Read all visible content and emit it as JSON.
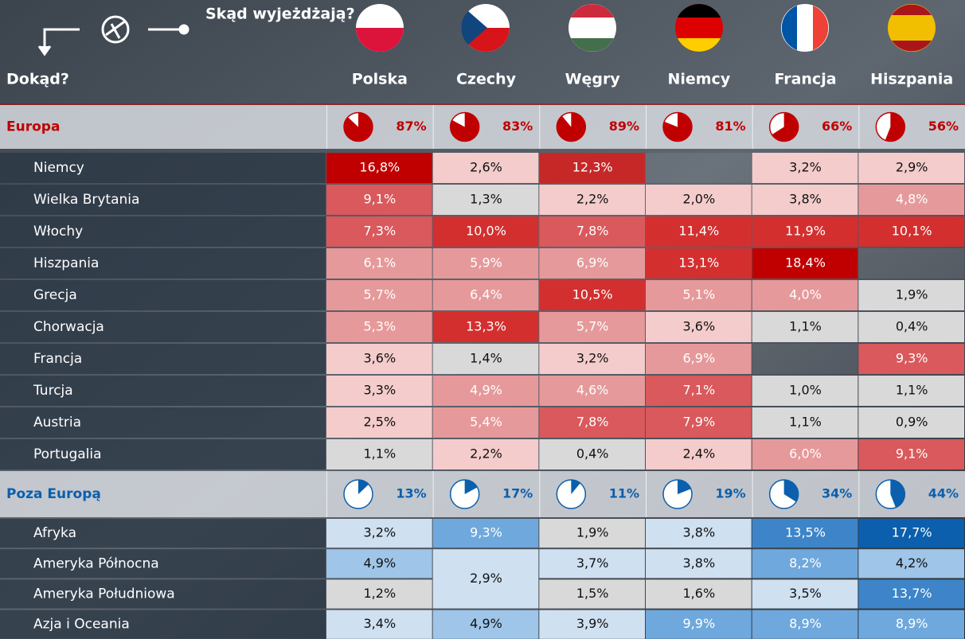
{
  "header": {
    "from_label": "Skąd wyjeżdżają?",
    "to_label": "Dokąd?",
    "countries": [
      "Polska",
      "Czechy",
      "Węgry",
      "Niemcy",
      "Francja",
      "Hiszpania"
    ]
  },
  "sections": [
    {
      "title": "Europa",
      "color": "#c00000",
      "shares": [
        {
          "value": 87,
          "label": "87%"
        },
        {
          "value": 83,
          "label": "83%"
        },
        {
          "value": 89,
          "label": "89%"
        },
        {
          "value": 81,
          "label": "81%"
        },
        {
          "value": 66,
          "label": "66%"
        },
        {
          "value": 56,
          "label": "56%"
        }
      ],
      "rows": [
        {
          "label": "Niemcy",
          "values": [
            "16,8%",
            "2,6%",
            "12,3%",
            null,
            "3,2%",
            "2,9%"
          ],
          "colors": [
            "#c00000",
            "#f4cccc",
            "#c62828",
            "rgba(255,255,255,0.08)",
            "#f4cccc",
            "#f4cccc"
          ]
        },
        {
          "label": "Wielka Brytania",
          "values": [
            "9,1%",
            "1,3%",
            "2,2%",
            "2,0%",
            "3,8%",
            "4,8%"
          ],
          "colors": [
            "#d9595c",
            "#d9d9d9",
            "#f4cccc",
            "#f4cccc",
            "#f4cccc",
            "#e6999a"
          ]
        },
        {
          "label": "Włochy",
          "values": [
            "7,3%",
            "10,0%",
            "7,8%",
            "11,4%",
            "11,9%",
            "10,1%"
          ],
          "colors": [
            "#d9595c",
            "#d42f2f",
            "#d9595c",
            "#d42f2f",
            "#d42f2f",
            "#d42f2f"
          ]
        },
        {
          "label": "Hiszpania",
          "values": [
            "6,1%",
            "5,9%",
            "6,9%",
            "13,1%",
            "18,4%",
            null
          ],
          "colors": [
            "#e6999a",
            "#e6999a",
            "#e6999a",
            "#d42f2f",
            "#c00000",
            "rgba(255,255,255,0.08)"
          ]
        },
        {
          "label": "Grecja",
          "values": [
            "5,7%",
            "6,4%",
            "10,5%",
            "5,1%",
            "4,0%",
            "1,9%"
          ],
          "colors": [
            "#e6999a",
            "#e6999a",
            "#d42f2f",
            "#e6999a",
            "#e6999a",
            "#d9d9d9"
          ]
        },
        {
          "label": "Chorwacja",
          "values": [
            "5,3%",
            "13,3%",
            "5,7%",
            "3,6%",
            "1,1%",
            "0,4%"
          ],
          "colors": [
            "#e6999a",
            "#d42f2f",
            "#e6999a",
            "#f4cccc",
            "#d9d9d9",
            "#d9d9d9"
          ]
        },
        {
          "label": "Francja",
          "values": [
            "3,6%",
            "1,4%",
            "3,2%",
            "6,9%",
            null,
            "9,3%"
          ],
          "colors": [
            "#f4cccc",
            "#d9d9d9",
            "#f4cccc",
            "#e6999a",
            "rgba(255,255,255,0.08)",
            "#d9595c"
          ]
        },
        {
          "label": "Turcja",
          "values": [
            "3,3%",
            "4,9%",
            "4,6%",
            "7,1%",
            "1,0%",
            "1,1%"
          ],
          "colors": [
            "#f4cccc",
            "#e6999a",
            "#e6999a",
            "#d9595c",
            "#d9d9d9",
            "#d9d9d9"
          ]
        },
        {
          "label": "Austria",
          "values": [
            "2,5%",
            "5,4%",
            "7,8%",
            "7,9%",
            "1,1%",
            "0,9%"
          ],
          "colors": [
            "#f4cccc",
            "#e6999a",
            "#d9595c",
            "#d9595c",
            "#d9d9d9",
            "#d9d9d9"
          ]
        },
        {
          "label": "Portugalia",
          "values": [
            "1,1%",
            "2,2%",
            "0,4%",
            "2,4%",
            "6,0%",
            "9,1%"
          ],
          "colors": [
            "#d9d9d9",
            "#f4cccc",
            "#d9d9d9",
            "#f4cccc",
            "#e6999a",
            "#d9595c"
          ]
        }
      ]
    },
    {
      "title": "Poza Europą",
      "color": "#0b5fad",
      "shares": [
        {
          "value": 13,
          "label": "13%"
        },
        {
          "value": 17,
          "label": "17%"
        },
        {
          "value": 11,
          "label": "11%"
        },
        {
          "value": 19,
          "label": "19%"
        },
        {
          "value": 34,
          "label": "34%"
        },
        {
          "value": 44,
          "label": "44%"
        }
      ],
      "rows": [
        {
          "label": "Afryka",
          "values": [
            "3,2%",
            "9,3%",
            "1,9%",
            "3,8%",
            "13,5%",
            "17,7%"
          ],
          "colors": [
            "#cfe0f1",
            "#6fa8dc",
            "#d9d9d9",
            "#cfe0f1",
            "#3d85c8",
            "#0b5fad"
          ]
        },
        {
          "label": "Ameryka Północna",
          "values": [
            "4,9%",
            "2,9%",
            "3,7%",
            "3,8%",
            "8,2%",
            "4,2%"
          ],
          "colors": [
            "#9fc5e8",
            "#cfe0f1",
            "#cfe0f1",
            "#cfe0f1",
            "#6fa8dc",
            "#9fc5e8"
          ]
        },
        {
          "label": "Ameryka Południowa",
          "values": [
            "1,2%",
            null,
            "1,5%",
            "1,6%",
            "3,5%",
            "13,7%"
          ],
          "colors": [
            "#d9d9d9",
            null,
            "#d9d9d9",
            "#d9d9d9",
            "#cfe0f1",
            "#3d85c8"
          ]
        },
        {
          "label": "Azja i Oceania",
          "values": [
            "3,4%",
            "4,9%",
            "3,9%",
            "9,9%",
            "8,9%",
            "8,9%"
          ],
          "colors": [
            "#cfe0f1",
            "#9fc5e8",
            "#cfe0f1",
            "#6fa8dc",
            "#6fa8dc",
            "#6fa8dc"
          ]
        }
      ]
    }
  ]
}
